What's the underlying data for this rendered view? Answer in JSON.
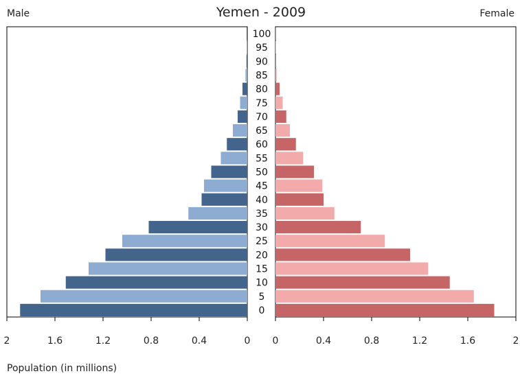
{
  "chart_data": {
    "type": "bar",
    "title": "Yemen - 2009",
    "left_label": "Male",
    "right_label": "Female",
    "xlabel": "Population (in millions)",
    "xlim": [
      0,
      2
    ],
    "x_ticks": [
      "0",
      "0.4",
      "0.8",
      "1.2",
      "1.6",
      "2"
    ],
    "categories": [
      "0",
      "5",
      "10",
      "15",
      "20",
      "25",
      "30",
      "35",
      "40",
      "45",
      "50",
      "55",
      "60",
      "65",
      "70",
      "75",
      "80",
      "85",
      "90",
      "95",
      "100"
    ],
    "series": [
      {
        "name": "Male",
        "color_dark": "#43658b",
        "color_light": "#8eacd1",
        "values": [
          1.89,
          1.72,
          1.51,
          1.32,
          1.18,
          1.04,
          0.82,
          0.49,
          0.38,
          0.36,
          0.3,
          0.22,
          0.17,
          0.12,
          0.08,
          0.06,
          0.04,
          0.015,
          0.007,
          0.004,
          0.002
        ]
      },
      {
        "name": "Female",
        "color_dark": "#c66565",
        "color_light": "#f2aaab",
        "values": [
          1.82,
          1.65,
          1.45,
          1.27,
          1.12,
          0.91,
          0.71,
          0.49,
          0.4,
          0.39,
          0.32,
          0.23,
          0.17,
          0.12,
          0.09,
          0.06,
          0.035,
          0.01,
          0.003,
          0.002,
          0.001
        ]
      }
    ],
    "grid": false
  }
}
